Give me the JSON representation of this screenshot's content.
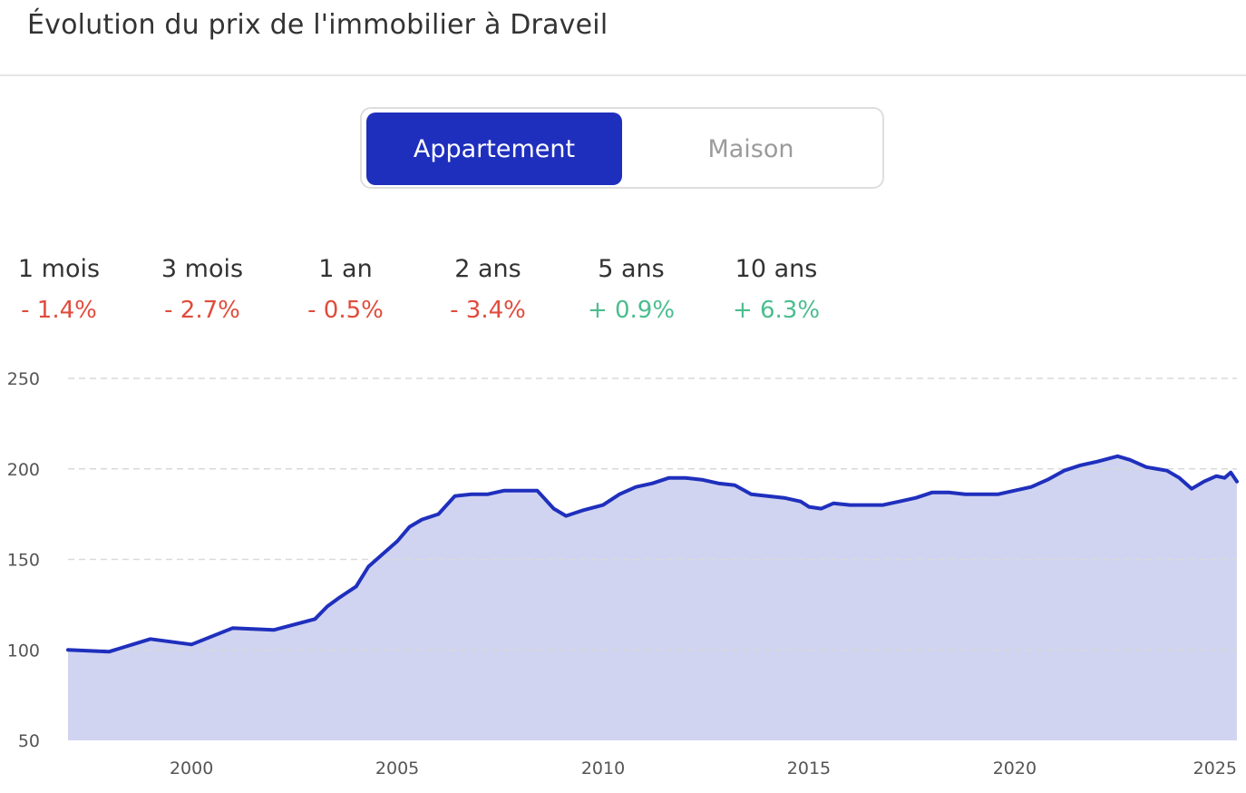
{
  "page": {
    "title": "Évolution du prix de l'immobilier à Draveil"
  },
  "toggle": {
    "active_label": "Appartement",
    "inactive_label": "Maison"
  },
  "stats": [
    {
      "label": "1 mois",
      "value": "- 1.4%",
      "trend": "neg"
    },
    {
      "label": "3 mois",
      "value": "- 2.7%",
      "trend": "neg"
    },
    {
      "label": "1 an",
      "value": "- 0.5%",
      "trend": "neg"
    },
    {
      "label": "2 ans",
      "value": "- 3.4%",
      "trend": "neg"
    },
    {
      "label": "5 ans",
      "value": "+ 0.9%",
      "trend": "pos"
    },
    {
      "label": "10 ans",
      "value": "+ 6.3%",
      "trend": "pos"
    }
  ],
  "colors": {
    "accent": "#1f2fbd",
    "area_fill": "#d0d4f0",
    "negative": "#e04c3c",
    "positive": "#4bbd8f",
    "grid": "#d9d9d9",
    "tick_text": "#555555"
  },
  "chart_data": {
    "type": "area",
    "title": "",
    "xlabel": "",
    "ylabel": "",
    "ylim": [
      50,
      250
    ],
    "xlim": [
      1997.0,
      2025.4
    ],
    "y_ticks": [
      "50",
      "100",
      "150",
      "200",
      "250"
    ],
    "x_ticks": [
      "2000",
      "2005",
      "2010",
      "2015",
      "2020",
      "2025"
    ],
    "grid": "horizontal dashed",
    "series": [
      {
        "name": "",
        "x": [
          1997.0,
          1998.0,
          1999.0,
          2000.0,
          2001.0,
          2002.0,
          2003.0,
          2003.3,
          2003.6,
          2004.0,
          2004.3,
          2004.6,
          2005.0,
          2005.3,
          2005.6,
          2006.0,
          2006.4,
          2006.8,
          2007.2,
          2007.6,
          2008.0,
          2008.4,
          2008.8,
          2009.1,
          2009.5,
          2010.0,
          2010.4,
          2010.8,
          2011.2,
          2011.6,
          2012.0,
          2012.4,
          2012.8,
          2013.2,
          2013.6,
          2014.0,
          2014.4,
          2014.8,
          2015.0,
          2015.3,
          2015.6,
          2016.0,
          2016.4,
          2016.8,
          2017.2,
          2017.6,
          2018.0,
          2018.4,
          2018.8,
          2019.2,
          2019.6,
          2020.0,
          2020.4,
          2020.8,
          2021.2,
          2021.6,
          2022.0,
          2022.5,
          2022.8,
          2023.2,
          2023.7,
          2024.0,
          2024.3,
          2024.6,
          2024.9,
          2025.1,
          2025.25,
          2025.4
        ],
        "y": [
          100,
          99,
          106,
          103,
          112,
          111,
          117,
          124,
          129,
          135,
          146,
          152,
          160,
          168,
          172,
          175,
          185,
          186,
          186,
          188,
          188,
          188,
          178,
          174,
          177,
          180,
          186,
          190,
          192,
          195,
          195,
          194,
          192,
          191,
          186,
          185,
          184,
          182,
          179,
          178,
          181,
          180,
          180,
          180,
          182,
          184,
          187,
          187,
          186,
          186,
          186,
          188,
          190,
          194,
          199,
          202,
          204,
          207,
          205,
          201,
          199,
          195,
          189,
          193,
          196,
          195,
          198,
          193
        ]
      }
    ]
  }
}
